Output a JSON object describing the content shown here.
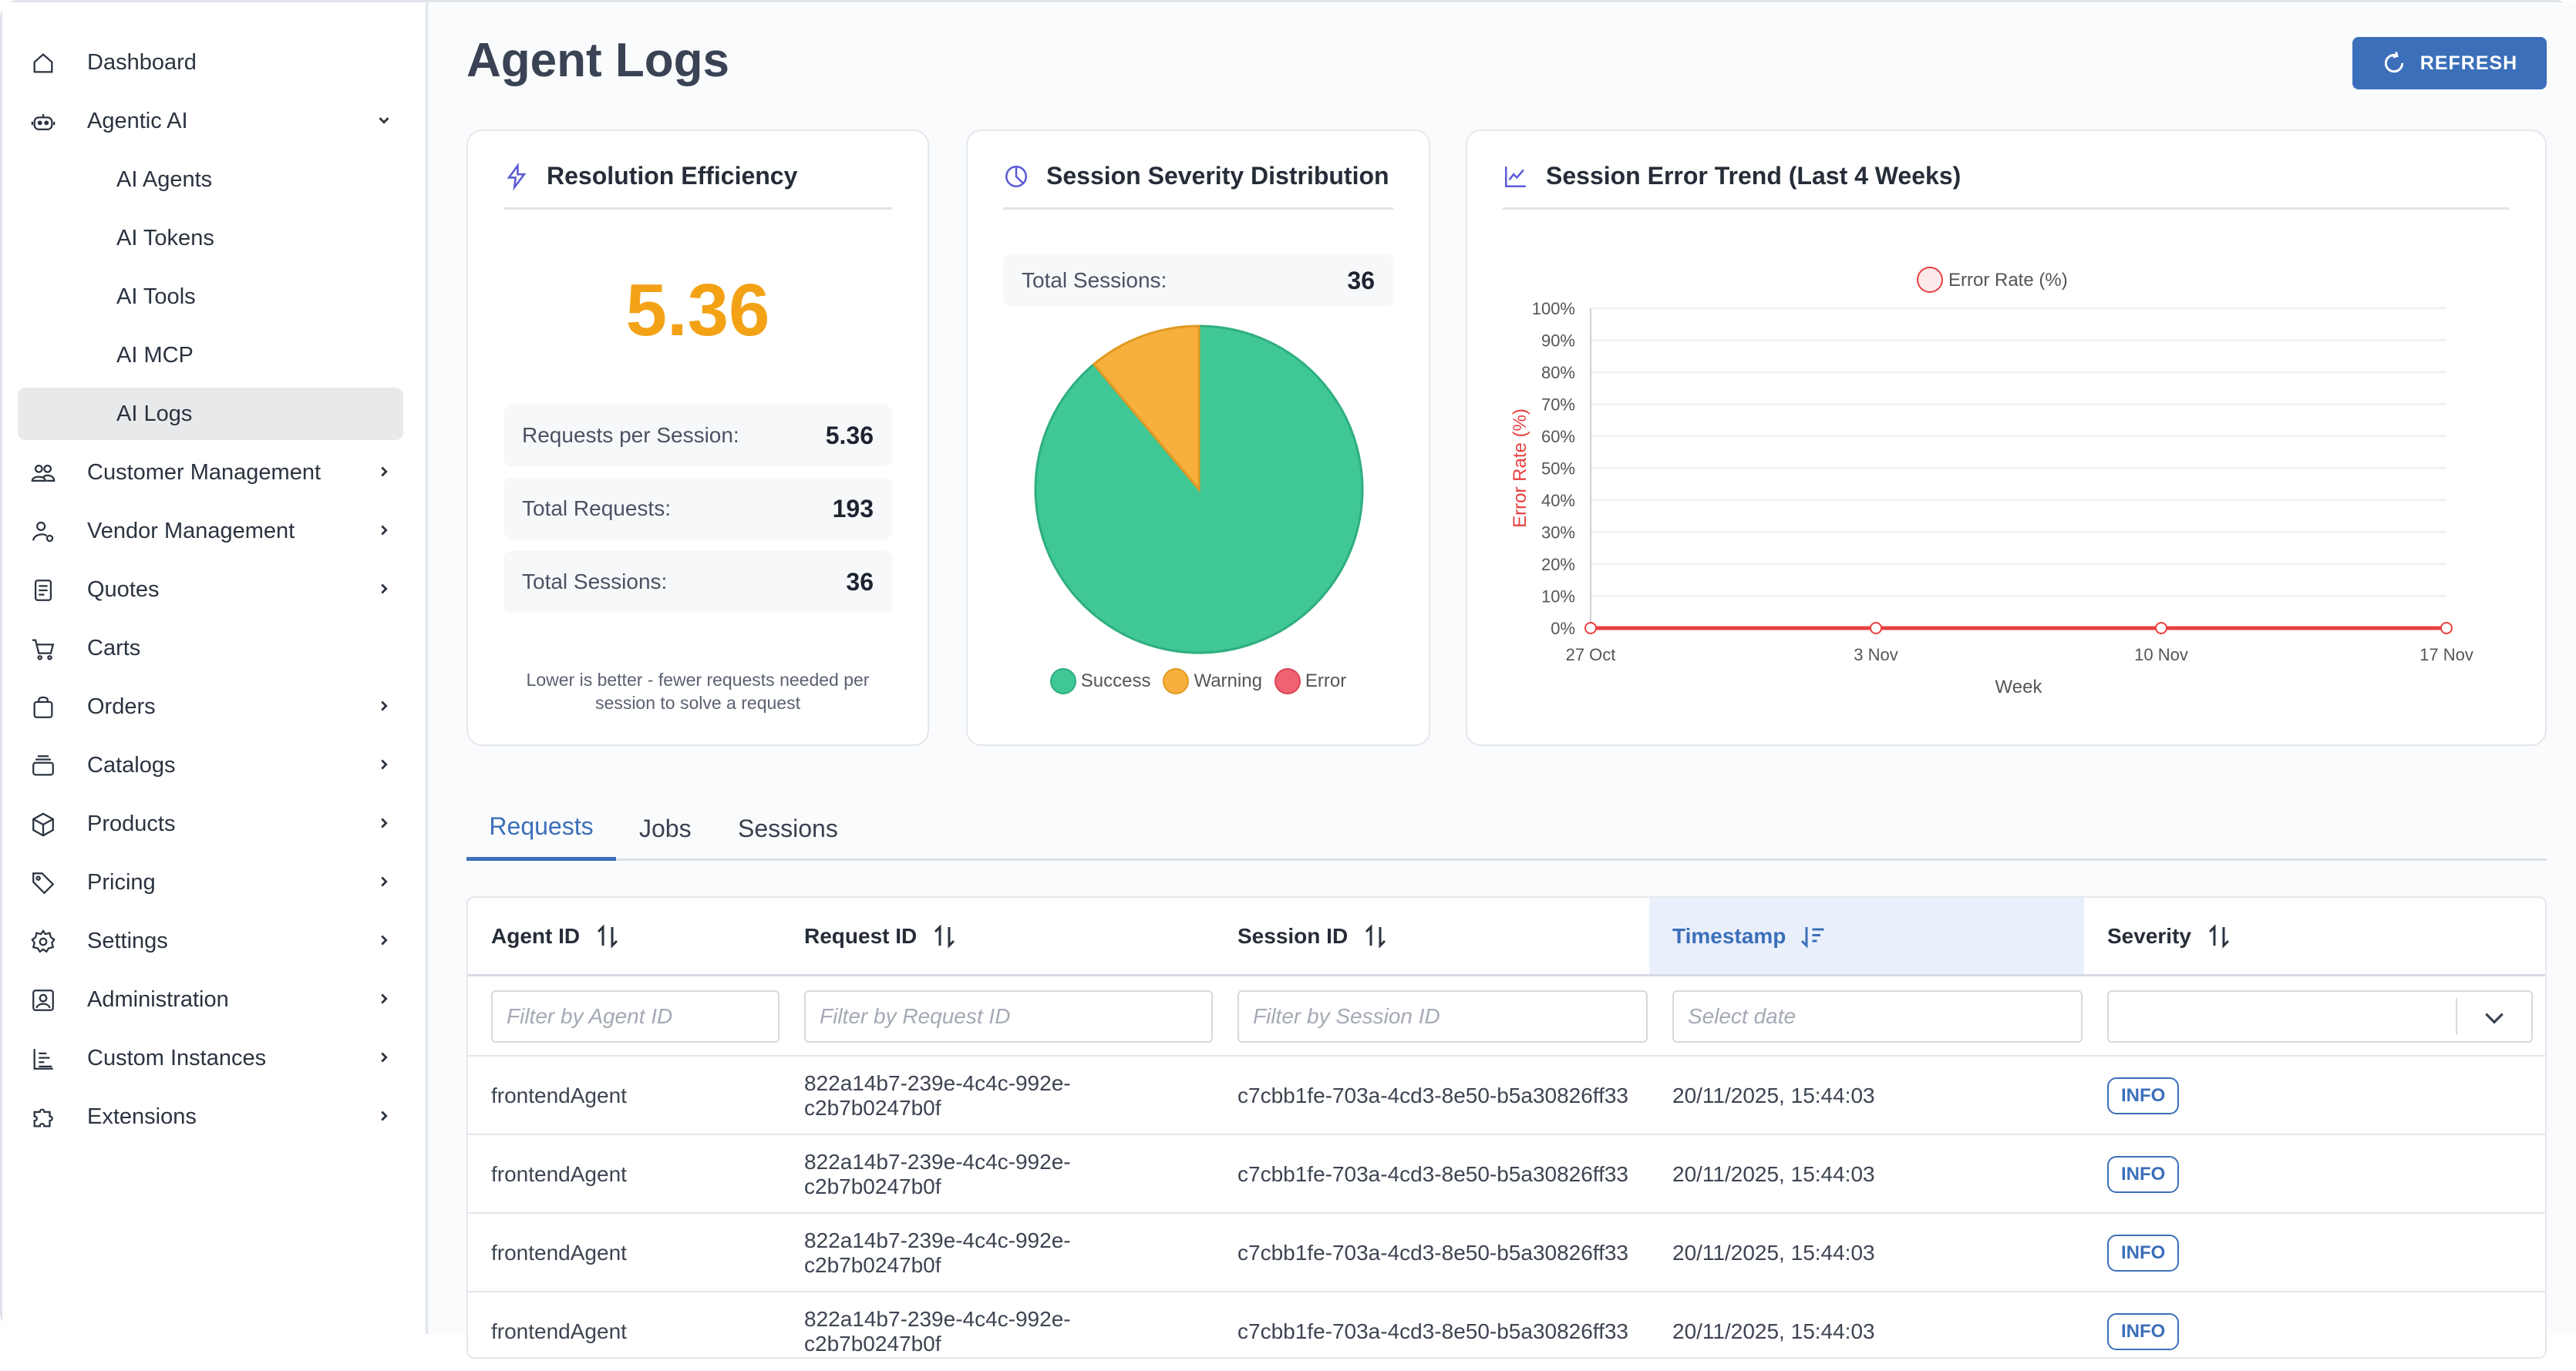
{
  "sidebar": {
    "items": [
      {
        "label": "Dashboard",
        "icon": "home-icon",
        "expandable": false
      },
      {
        "label": "Agentic AI",
        "icon": "robot-icon",
        "expandable": true,
        "expanded": true
      },
      {
        "label": "AI Agents",
        "sub": true
      },
      {
        "label": "AI Tokens",
        "sub": true
      },
      {
        "label": "AI Tools",
        "sub": true
      },
      {
        "label": "AI MCP",
        "sub": true
      },
      {
        "label": "AI Logs",
        "sub": true,
        "active": true
      },
      {
        "label": "Customer Management",
        "icon": "users-icon",
        "expandable": true
      },
      {
        "label": "Vendor Management",
        "icon": "vendor-icon",
        "expandable": true
      },
      {
        "label": "Quotes",
        "icon": "document-icon",
        "expandable": true
      },
      {
        "label": "Carts",
        "icon": "cart-icon",
        "expandable": false
      },
      {
        "label": "Orders",
        "icon": "bag-icon",
        "expandable": true
      },
      {
        "label": "Catalogs",
        "icon": "catalog-icon",
        "expandable": true
      },
      {
        "label": "Products",
        "icon": "box-icon",
        "expandable": true
      },
      {
        "label": "Pricing",
        "icon": "tag-icon",
        "expandable": true
      },
      {
        "label": "Settings",
        "icon": "gear-icon",
        "expandable": true
      },
      {
        "label": "Administration",
        "icon": "admin-icon",
        "expandable": true
      },
      {
        "label": "Custom Instances",
        "icon": "list-tree-icon",
        "expandable": true
      },
      {
        "label": "Extensions",
        "icon": "puzzle-icon",
        "expandable": true
      }
    ]
  },
  "header": {
    "title": "Agent Logs",
    "refresh_label": "REFRESH"
  },
  "efficiency": {
    "title": "Resolution Efficiency",
    "value": "5.36",
    "rows": [
      {
        "label": "Requests per Session:",
        "value": "5.36"
      },
      {
        "label": "Total Requests:",
        "value": "193"
      },
      {
        "label": "Total Sessions:",
        "value": "36"
      }
    ],
    "note": "Lower is better - fewer requests needed per session to solve a request"
  },
  "severity": {
    "title": "Session Severity Distribution",
    "total_label": "Total Sessions:",
    "total_value": "36",
    "legend": [
      {
        "label": "Success",
        "color": "#40c796"
      },
      {
        "label": "Warning",
        "color": "#f7b03e"
      },
      {
        "label": "Error",
        "color": "#f06272"
      }
    ]
  },
  "trend": {
    "title": "Session Error Trend (Last 4 Weeks)"
  },
  "chart_data": [
    {
      "type": "pie",
      "title": "Session Severity Distribution",
      "categories": [
        "Success",
        "Warning",
        "Error"
      ],
      "values": [
        32,
        4,
        0
      ],
      "colors": [
        "#40c796",
        "#f7b03e",
        "#f06272"
      ]
    },
    {
      "type": "line",
      "title": "Session Error Trend (Last 4 Weeks)",
      "legend": "Error Rate (%)",
      "xlabel": "Week",
      "ylabel": "Error Rate (%)",
      "categories": [
        "27 Oct",
        "3 Nov",
        "10 Nov",
        "17 Nov"
      ],
      "series": [
        {
          "name": "Error Rate (%)",
          "values": [
            0,
            0,
            0,
            0
          ],
          "color": "#e84040"
        }
      ],
      "ylim": [
        0,
        100
      ],
      "yticks": [
        "0%",
        "10%",
        "20%",
        "30%",
        "40%",
        "50%",
        "60%",
        "70%",
        "80%",
        "90%",
        "100%"
      ],
      "grid": true,
      "legend_position": "top"
    }
  ],
  "tabs": [
    {
      "label": "Requests",
      "active": true
    },
    {
      "label": "Jobs",
      "active": false
    },
    {
      "label": "Sessions",
      "active": false
    }
  ],
  "table": {
    "columns": [
      {
        "label": "Agent ID",
        "filter_placeholder": "Filter by Agent ID"
      },
      {
        "label": "Request ID",
        "filter_placeholder": "Filter by Request ID"
      },
      {
        "label": "Session ID",
        "filter_placeholder": "Filter by Session ID"
      },
      {
        "label": "Timestamp",
        "filter_placeholder": "Select date",
        "sorted": true
      },
      {
        "label": "Severity",
        "filter_placeholder": ""
      }
    ],
    "rows": [
      {
        "agent": "frontendAgent",
        "request": "822a14b7-239e-4c4c-992e-c2b7b0247b0f",
        "session": "c7cbb1fe-703a-4cd3-8e50-b5a30826ff33",
        "timestamp": "20/11/2025, 15:44:03",
        "severity": "INFO"
      },
      {
        "agent": "frontendAgent",
        "request": "822a14b7-239e-4c4c-992e-c2b7b0247b0f",
        "session": "c7cbb1fe-703a-4cd3-8e50-b5a30826ff33",
        "timestamp": "20/11/2025, 15:44:03",
        "severity": "INFO"
      },
      {
        "agent": "frontendAgent",
        "request": "822a14b7-239e-4c4c-992e-c2b7b0247b0f",
        "session": "c7cbb1fe-703a-4cd3-8e50-b5a30826ff33",
        "timestamp": "20/11/2025, 15:44:03",
        "severity": "INFO"
      },
      {
        "agent": "frontendAgent",
        "request": "822a14b7-239e-4c4c-992e-c2b7b0247b0f",
        "session": "c7cbb1fe-703a-4cd3-8e50-b5a30826ff33",
        "timestamp": "20/11/2025, 15:44:03",
        "severity": "INFO"
      }
    ]
  }
}
